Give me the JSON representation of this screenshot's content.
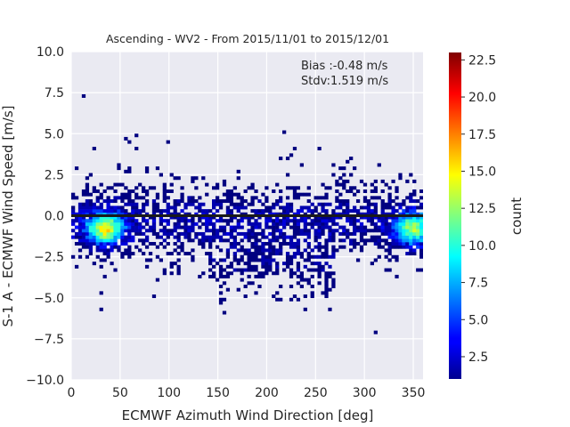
{
  "chart_data": {
    "type": "heatmap",
    "title": "Ascending - WV2 - From 2015/11/01 to 2015/12/01",
    "xlabel": "ECMWF Azimuth Wind Direction [deg]",
    "ylabel": "S-1 A - ECMWF Wind Speed [m/s]",
    "xlim": [
      0,
      360
    ],
    "ylim": [
      -10,
      10
    ],
    "xticks": [
      0,
      50,
      100,
      150,
      200,
      250,
      300,
      350
    ],
    "xtick_labels": [
      "0",
      "50",
      "100",
      "150",
      "200",
      "250",
      "300",
      "350"
    ],
    "yticks": [
      -10,
      -7.5,
      -5,
      -2.5,
      0,
      2.5,
      5,
      7.5,
      10
    ],
    "ytick_labels": [
      "−10.0",
      "−7.5",
      "−5.0",
      "−2.5",
      "0.0",
      "2.5",
      "5.0",
      "7.5",
      "10.0"
    ],
    "grid": true,
    "colorbar": {
      "label": "count",
      "colormap": "jet",
      "range": [
        1,
        23
      ],
      "ticks": [
        2.5,
        5.0,
        7.5,
        10.0,
        12.5,
        15.0,
        17.5,
        20.0,
        22.5
      ],
      "tick_labels": [
        "2.5",
        "5.0",
        "7.5",
        "10.0",
        "12.5",
        "15.0",
        "17.5",
        "20.0",
        "22.5"
      ]
    },
    "annotations": [
      "Bias :-0.48 m/s",
      "Stdv:1.519 m/s"
    ],
    "zero_line_y": 0,
    "density_hotspots": [
      {
        "x": 35,
        "y": -0.8,
        "peak_count": 16
      },
      {
        "x": 350,
        "y": -0.8,
        "peak_count": 14
      }
    ]
  }
}
